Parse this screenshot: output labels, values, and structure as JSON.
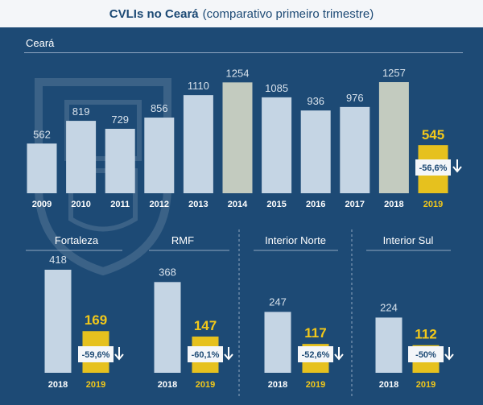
{
  "header": {
    "title_bold": "CVLIs no Ceará",
    "title_rest": "(comparativo primeiro trimestre)"
  },
  "section": {
    "label": "Ceará"
  },
  "colors": {
    "background": "#1d4a75",
    "bar_light": "#c5d5e4",
    "bar_2014": "#c3cbbf",
    "bar_2018_state": "#c3cbbf",
    "bar_2019": "#e6c11e",
    "badge_bg": "#f4f6f9",
    "badge_text": "#1d4a75",
    "value_light": "#d8e2ec",
    "value_2019": "#f2c81a",
    "tick_2019": "#f2c81a",
    "arrow": "#ffffff"
  },
  "chart_data": [
    {
      "type": "bar",
      "title": "Ceará",
      "categories": [
        "2009",
        "2010",
        "2011",
        "2012",
        "2013",
        "2014",
        "2015",
        "2016",
        "2017",
        "2018",
        "2019"
      ],
      "values": [
        562,
        819,
        729,
        856,
        1110,
        1254,
        1085,
        936,
        976,
        1257,
        545
      ],
      "change_label": "-56,6%",
      "highlight_category": "2019"
    },
    {
      "type": "bar",
      "title": "Fortaleza",
      "categories": [
        "2018",
        "2019"
      ],
      "values": [
        418,
        169
      ],
      "change_label": "-59,6%",
      "highlight_category": "2019"
    },
    {
      "type": "bar",
      "title": "RMF",
      "categories": [
        "2018",
        "2019"
      ],
      "values": [
        368,
        147
      ],
      "change_label": "-60,1%",
      "highlight_category": "2019"
    },
    {
      "type": "bar",
      "title": "Interior Norte",
      "categories": [
        "2018",
        "2019"
      ],
      "values": [
        247,
        117
      ],
      "change_label": "-52,6%",
      "highlight_category": "2019"
    },
    {
      "type": "bar",
      "title": "Interior Sul",
      "categories": [
        "2018",
        "2019"
      ],
      "values": [
        224,
        112
      ],
      "change_label": "-50%",
      "highlight_category": "2019"
    }
  ]
}
